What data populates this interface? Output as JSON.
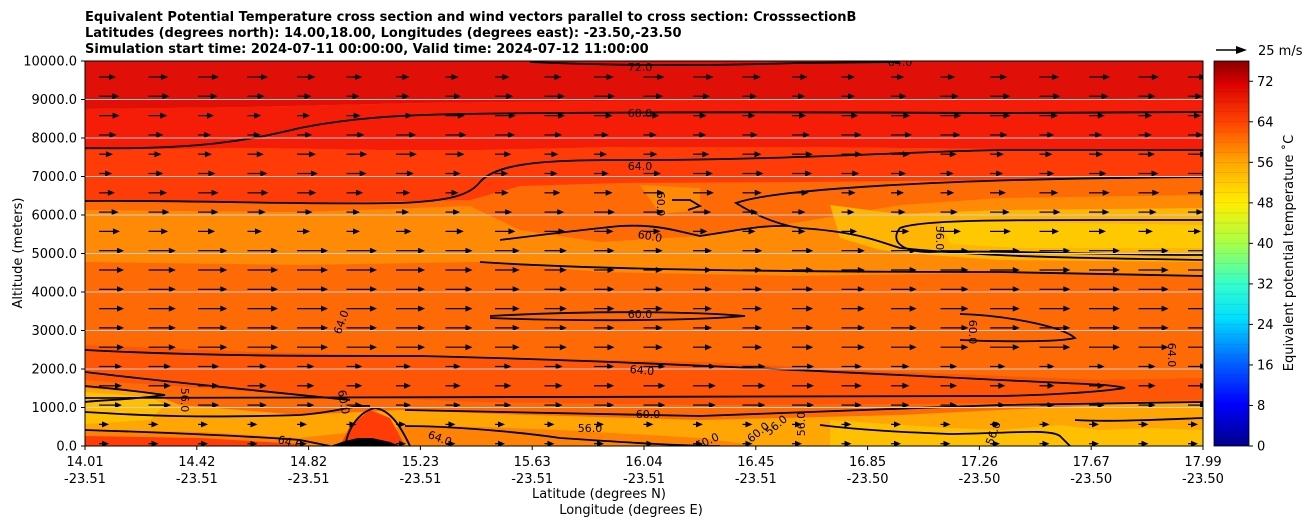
{
  "titles": [
    "Equivalent Potential Temperature cross section and wind vectors parallel to cross section: CrosssectionB",
    "Latitudes (degrees north): 14.00,18.00, Longitudes (degrees east): -23.50,-23.50",
    "Simulation start time: 2024-07-11 00:00:00, Valid time: 2024-07-12 11:00:00"
  ],
  "chart_data": {
    "type": "heatmap",
    "subtype": "filled contour cross section with wind vectors",
    "title": "Equivalent Potential Temperature cross section and wind vectors parallel to cross section: CrosssectionB",
    "ylabel": "Altitude (meters)",
    "xlabel_lines": [
      "Latitude (degrees N)",
      "Longitude (degrees E)"
    ],
    "ylim": [
      0,
      10000
    ],
    "y_ticks": [
      "0.0",
      "1000.0",
      "2000.0",
      "3000.0",
      "4000.0",
      "5000.0",
      "6000.0",
      "7000.0",
      "8000.0",
      "9000.0",
      "10000.0"
    ],
    "x_ticks": [
      {
        "lat": "14.01",
        "lon": "-23.51"
      },
      {
        "lat": "14.42",
        "lon": "-23.51"
      },
      {
        "lat": "14.82",
        "lon": "-23.51"
      },
      {
        "lat": "15.23",
        "lon": "-23.51"
      },
      {
        "lat": "15.63",
        "lon": "-23.51"
      },
      {
        "lat": "16.04",
        "lon": "-23.51"
      },
      {
        "lat": "16.45",
        "lon": "-23.51"
      },
      {
        "lat": "16.85",
        "lon": "-23.50"
      },
      {
        "lat": "17.26",
        "lon": "-23.50"
      },
      {
        "lat": "17.67",
        "lon": "-23.50"
      },
      {
        "lat": "17.99",
        "lon": "-23.50"
      }
    ],
    "grid": "horizontal",
    "colorbar": {
      "label": "Equivalent potential temperature ˚C",
      "range": [
        0,
        76
      ],
      "ticks": [
        "0",
        "8",
        "16",
        "24",
        "32",
        "40",
        "48",
        "56",
        "64",
        "72"
      ],
      "colormap": "jet"
    },
    "wind_reference_label": "25 m/s",
    "contour_labels": [
      "72.0",
      "68.0",
      "64.0",
      "60.0",
      "60.0",
      "60.0",
      "64.0",
      "60.0",
      "64.0",
      "60.0",
      "64.0",
      "56.0",
      "60.0",
      "64.0",
      "64.0",
      "60.0",
      "60.0",
      "56.0",
      "56.0",
      "56.0",
      "56.0",
      "56.0",
      "64.0"
    ],
    "theta_e_profile": [
      {
        "altitude_m": 200,
        "value": 63
      },
      {
        "altitude_m": 800,
        "value": 59
      },
      {
        "altitude_m": 1500,
        "value": 63
      },
      {
        "altitude_m": 2500,
        "value": 64
      },
      {
        "altitude_m": 4000,
        "value": 62
      },
      {
        "altitude_m": 5500,
        "value": 59
      },
      {
        "altitude_m": 7000,
        "value": 64
      },
      {
        "altitude_m": 8500,
        "value": 68
      },
      {
        "altitude_m": 10000,
        "value": 72
      }
    ]
  }
}
